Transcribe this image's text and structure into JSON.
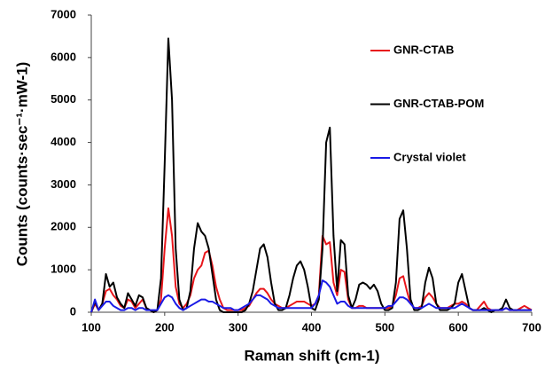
{
  "chart_data": {
    "type": "line",
    "x_label": "Raman shift (cm-1)",
    "y_label": "Counts (counts·sec⁻¹·mW-1)",
    "x": [
      100,
      105,
      110,
      115,
      120,
      125,
      130,
      135,
      140,
      145,
      150,
      155,
      160,
      165,
      170,
      175,
      180,
      185,
      190,
      195,
      200,
      205,
      210,
      215,
      220,
      225,
      230,
      235,
      240,
      245,
      250,
      255,
      260,
      265,
      270,
      275,
      280,
      285,
      290,
      295,
      300,
      305,
      310,
      315,
      320,
      325,
      330,
      335,
      340,
      345,
      350,
      355,
      360,
      365,
      370,
      375,
      380,
      385,
      390,
      395,
      400,
      405,
      410,
      415,
      420,
      425,
      430,
      435,
      440,
      445,
      450,
      455,
      460,
      465,
      470,
      475,
      480,
      485,
      490,
      495,
      500,
      505,
      510,
      515,
      520,
      525,
      530,
      535,
      540,
      545,
      550,
      555,
      560,
      565,
      570,
      575,
      580,
      585,
      590,
      595,
      600,
      605,
      610,
      615,
      620,
      625,
      630,
      635,
      640,
      645,
      650,
      655,
      660,
      665,
      670,
      675,
      680,
      685,
      690,
      695,
      700
    ],
    "series": [
      {
        "name": "GNR-CTAB",
        "color": "#e8161b",
        "values": [
          0,
          200,
          50,
          200,
          500,
          550,
          400,
          300,
          150,
          100,
          300,
          250,
          100,
          200,
          300,
          100,
          50,
          0,
          50,
          300,
          1500,
          2450,
          1800,
          600,
          200,
          100,
          200,
          400,
          800,
          1000,
          1100,
          1400,
          1450,
          1100,
          600,
          300,
          100,
          50,
          50,
          50,
          50,
          50,
          100,
          150,
          300,
          450,
          550,
          550,
          450,
          300,
          200,
          150,
          100,
          100,
          150,
          200,
          250,
          250,
          250,
          200,
          150,
          200,
          400,
          1800,
          1600,
          1650,
          700,
          400,
          1000,
          950,
          300,
          100,
          100,
          150,
          150,
          100,
          100,
          100,
          100,
          100,
          100,
          100,
          150,
          400,
          800,
          850,
          500,
          200,
          100,
          100,
          150,
          350,
          450,
          350,
          200,
          100,
          100,
          100,
          150,
          200,
          200,
          250,
          200,
          100,
          50,
          50,
          150,
          250,
          100,
          50,
          50,
          50,
          50,
          100,
          50,
          50,
          50,
          100,
          150,
          100,
          50
        ]
      },
      {
        "name": "GNR-CTAB-POM",
        "color": "#000000",
        "values": [
          0,
          250,
          50,
          200,
          900,
          600,
          700,
          350,
          200,
          100,
          450,
          300,
          150,
          400,
          350,
          100,
          50,
          0,
          50,
          800,
          3500,
          6450,
          5000,
          1500,
          300,
          50,
          100,
          500,
          1500,
          2100,
          1900,
          1800,
          1500,
          900,
          300,
          50,
          0,
          0,
          0,
          0,
          0,
          0,
          50,
          200,
          500,
          1000,
          1500,
          1600,
          1300,
          700,
          200,
          50,
          50,
          100,
          400,
          800,
          1100,
          1200,
          1000,
          600,
          100,
          50,
          300,
          1500,
          4000,
          4350,
          1800,
          500,
          1700,
          1600,
          400,
          100,
          300,
          650,
          700,
          650,
          550,
          650,
          500,
          200,
          50,
          50,
          100,
          700,
          2200,
          2400,
          1500,
          300,
          50,
          50,
          100,
          700,
          1050,
          800,
          200,
          50,
          50,
          50,
          100,
          200,
          700,
          900,
          500,
          100,
          50,
          50,
          50,
          100,
          50,
          0,
          50,
          50,
          100,
          300,
          100,
          50,
          50,
          50,
          50,
          50,
          50
        ]
      },
      {
        "name": "Crystal violet",
        "color": "#1a1ae6",
        "values": [
          0,
          300,
          50,
          150,
          250,
          250,
          150,
          100,
          50,
          50,
          100,
          100,
          50,
          100,
          100,
          50,
          50,
          50,
          50,
          200,
          350,
          400,
          350,
          200,
          100,
          50,
          100,
          150,
          200,
          250,
          300,
          300,
          250,
          250,
          200,
          150,
          100,
          100,
          100,
          50,
          50,
          100,
          150,
          200,
          300,
          400,
          400,
          350,
          300,
          200,
          150,
          100,
          100,
          100,
          100,
          100,
          100,
          100,
          100,
          100,
          100,
          200,
          400,
          750,
          700,
          600,
          400,
          200,
          250,
          250,
          150,
          100,
          100,
          100,
          100,
          100,
          100,
          100,
          100,
          100,
          100,
          150,
          150,
          250,
          350,
          350,
          300,
          200,
          100,
          100,
          100,
          150,
          200,
          150,
          100,
          100,
          100,
          100,
          100,
          100,
          150,
          200,
          150,
          100,
          50,
          50,
          50,
          50,
          50,
          50,
          50,
          50,
          50,
          100,
          50,
          50,
          50,
          50,
          50,
          50,
          50
        ]
      }
    ],
    "xlim": [
      100,
      700
    ],
    "xticks": [
      100,
      200,
      300,
      400,
      500,
      600,
      700
    ],
    "ylim": [
      0,
      7000
    ],
    "yticks": [
      0,
      1000,
      2000,
      3000,
      4000,
      5000,
      6000,
      7000
    ],
    "grid": false,
    "legend": "upper right"
  }
}
